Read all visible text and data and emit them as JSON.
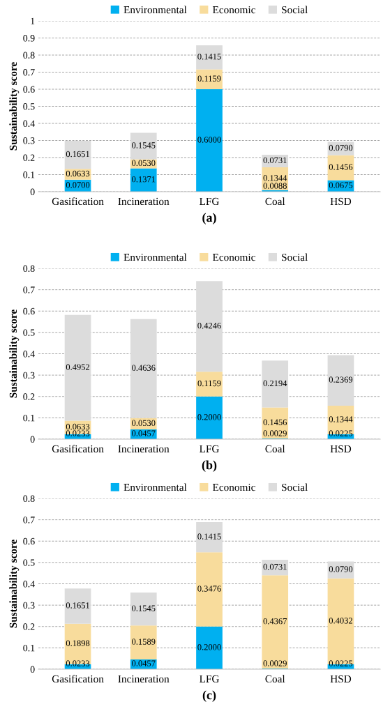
{
  "chart_data": [
    {
      "type": "bar",
      "stacked": true,
      "xlabel": "(a)",
      "ylabel": "Sustainability score",
      "categories": [
        "Gasification",
        "Incineration",
        "LFG",
        "Coal",
        "HSD"
      ],
      "ylim": [
        0,
        1
      ],
      "yticks": [
        0,
        0.1,
        0.2,
        0.3,
        0.4,
        0.5,
        0.6,
        0.7,
        0.8,
        0.9,
        1
      ],
      "grid": "y",
      "legend": "top",
      "series": [
        {
          "name": "Environmental",
          "color": "#00b0f0",
          "values": [
            0.07,
            0.1371,
            0.6,
            0.0088,
            0.0675
          ],
          "value_labels": [
            "0.0700",
            "0.1371",
            "0.6000",
            "0.0088",
            "0.0675"
          ]
        },
        {
          "name": "Economic",
          "color": "#f8dc9c",
          "values": [
            0.0633,
            0.053,
            0.1159,
            0.1344,
            0.1456
          ],
          "value_labels": [
            "0.0633",
            "0.0530",
            "0.1159",
            "0.1344",
            "0.1456"
          ]
        },
        {
          "name": "Social",
          "color": "#dcdcdc",
          "values": [
            0.1651,
            0.1545,
            0.1415,
            0.0731,
            0.079
          ],
          "value_labels": [
            "0.1651",
            "0.1545",
            "0.1415",
            "0.0731",
            "0.0790"
          ]
        }
      ]
    },
    {
      "type": "bar",
      "stacked": true,
      "xlabel": "(b)",
      "ylabel": "Sustainability score",
      "categories": [
        "Gasification",
        "Incineration",
        "LFG",
        "Coal",
        "HSD"
      ],
      "ylim": [
        0,
        0.8
      ],
      "yticks": [
        0,
        0.1,
        0.2,
        0.3,
        0.4,
        0.5,
        0.6,
        0.7,
        0.8
      ],
      "grid": "y",
      "legend": "top",
      "series": [
        {
          "name": "Environmental",
          "color": "#00b0f0",
          "values": [
            0.0233,
            0.0457,
            0.2,
            0.0029,
            0.0225
          ],
          "value_labels": [
            "0.0233",
            "0.0457",
            "0.2000",
            "0.0029",
            "0.0225"
          ]
        },
        {
          "name": "Economic",
          "color": "#f8dc9c",
          "values": [
            0.0633,
            0.053,
            0.1159,
            0.1456,
            0.1344
          ],
          "value_labels": [
            "0.0633",
            "0.0530",
            "0.1159",
            "0.1456",
            "0.1344"
          ]
        },
        {
          "name": "Social",
          "color": "#dcdcdc",
          "values": [
            0.4952,
            0.4636,
            0.4246,
            0.2194,
            0.2369
          ],
          "value_labels": [
            "0.4952",
            "0.4636",
            "0.4246",
            "0.2194",
            "0.2369"
          ]
        }
      ]
    },
    {
      "type": "bar",
      "stacked": true,
      "xlabel": "(c)",
      "ylabel": "Sustainability score",
      "categories": [
        "Gasification",
        "Incineration",
        "LFG",
        "Coal",
        "HSD"
      ],
      "ylim": [
        0,
        0.8
      ],
      "yticks": [
        0,
        0.1,
        0.2,
        0.3,
        0.4,
        0.5,
        0.6,
        0.7,
        0.8
      ],
      "grid": "y",
      "legend": "top",
      "series": [
        {
          "name": "Environmental",
          "color": "#00b0f0",
          "values": [
            0.0233,
            0.0457,
            0.2,
            0.0029,
            0.0225
          ],
          "value_labels": [
            "0.0233",
            "0.0457",
            "0.2000",
            "0.0029",
            "0.0225"
          ]
        },
        {
          "name": "Economic",
          "color": "#f8dc9c",
          "values": [
            0.1898,
            0.1589,
            0.3476,
            0.4367,
            0.4032
          ],
          "value_labels": [
            "0.1898",
            "0.1589",
            "0.3476",
            "0.4367",
            "0.4032"
          ]
        },
        {
          "name": "Social",
          "color": "#dcdcdc",
          "values": [
            0.1651,
            0.1545,
            0.1415,
            0.0731,
            0.079
          ],
          "value_labels": [
            "0.1651",
            "0.1545",
            "0.1415",
            "0.0731",
            "0.0790"
          ]
        }
      ]
    }
  ]
}
